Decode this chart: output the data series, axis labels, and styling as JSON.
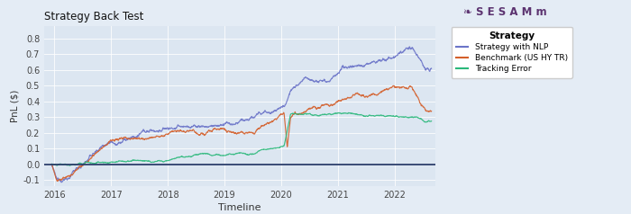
{
  "title": "Strategy Back Test",
  "xlabel": "Timeline",
  "ylabel": "PnL ($)",
  "plot_bg_color": "#dce6f1",
  "fig_bg_color": "#e4ecf5",
  "line_colors": {
    "strategy": "#6b74c8",
    "benchmark": "#d45f2a",
    "tracking": "#2ab87a"
  },
  "legend_labels": [
    "Strategy with NLP",
    "Benchmark (US HY TR)",
    "Tracking Error"
  ],
  "legend_title": "Strategy",
  "ylim": [
    -0.14,
    0.88
  ],
  "xlim_start": 2015.82,
  "xlim_end": 2022.72,
  "hline_y": 0.0,
  "hline_color": "#2c3e6b",
  "x_ticks": [
    2016,
    2017,
    2018,
    2019,
    2020,
    2021,
    2022
  ],
  "y_ticks": [
    -0.1,
    0.0,
    0.1,
    0.2,
    0.3,
    0.4,
    0.5,
    0.6,
    0.7,
    0.8
  ]
}
